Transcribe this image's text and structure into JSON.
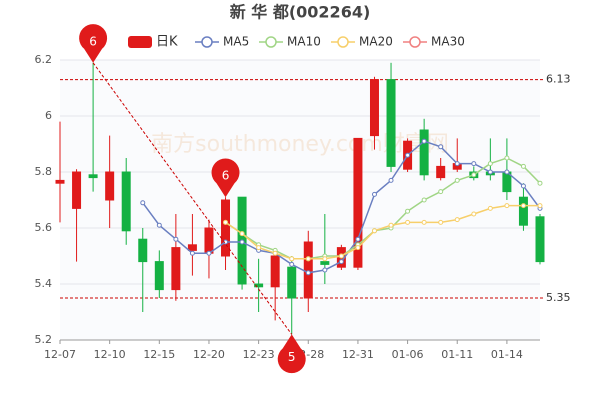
{
  "chart_data": {
    "type": "candlestick",
    "title": "新 华 都(002264)",
    "watermark": "南方southmoney.com财富网",
    "categories": [
      "12-07",
      null,
      null,
      "12-10",
      null,
      null,
      "12-15",
      null,
      null,
      "12-20",
      null,
      null,
      "12-23",
      null,
      null,
      "12-28",
      null,
      null,
      "12-31",
      null,
      null,
      "01-06",
      null,
      null,
      "01-11",
      null,
      null,
      "01-14",
      null,
      null
    ],
    "candles": {
      "name": "日K",
      "up_color": "#e01b1b",
      "down_color": "#14b143",
      "open": [
        5.76,
        5.67,
        5.79,
        5.7,
        5.8,
        5.56,
        5.48,
        5.38,
        5.52,
        5.51,
        5.5,
        5.71,
        5.4,
        5.39,
        5.46,
        5.35,
        5.48,
        5.46,
        5.46,
        5.93,
        6.13,
        5.81,
        5.95,
        5.78,
        5.81,
        5.8,
        5.8,
        5.8,
        5.71,
        5.64
      ],
      "close": [
        5.77,
        5.8,
        5.78,
        5.8,
        5.59,
        5.48,
        5.38,
        5.53,
        5.54,
        5.6,
        5.7,
        5.4,
        5.39,
        5.5,
        5.35,
        5.55,
        5.47,
        5.53,
        5.92,
        6.13,
        5.82,
        5.91,
        5.79,
        5.82,
        5.83,
        5.78,
        5.79,
        5.73,
        5.61,
        5.48
      ],
      "high": [
        5.98,
        5.81,
        6.19,
        5.93,
        5.85,
        5.6,
        5.52,
        5.65,
        5.65,
        5.63,
        5.71,
        5.71,
        5.49,
        5.52,
        5.5,
        5.59,
        5.65,
        5.54,
        5.92,
        6.14,
        6.19,
        5.92,
        5.99,
        5.85,
        5.92,
        5.82,
        5.92,
        5.92,
        5.76,
        5.65
      ],
      "low": [
        5.62,
        5.48,
        5.73,
        5.6,
        5.54,
        5.3,
        5.35,
        5.34,
        5.43,
        5.42,
        5.45,
        5.38,
        5.3,
        5.27,
        5.22,
        5.3,
        5.4,
        5.45,
        5.45,
        5.88,
        5.8,
        5.8,
        5.77,
        5.77,
        5.8,
        5.77,
        5.77,
        5.7,
        5.59,
        5.47
      ]
    },
    "series": [
      {
        "name": "MA5",
        "color": "#6a7fc1",
        "values": [
          null,
          null,
          null,
          null,
          null,
          5.69,
          5.61,
          5.56,
          5.51,
          5.51,
          5.55,
          5.55,
          5.52,
          5.51,
          5.47,
          5.44,
          5.45,
          5.48,
          5.56,
          5.72,
          5.77,
          5.86,
          5.91,
          5.89,
          5.83,
          5.83,
          5.8,
          5.8,
          5.75,
          5.67
        ]
      },
      {
        "name": "MA10",
        "color": "#a0d585",
        "values": [
          null,
          null,
          null,
          null,
          null,
          null,
          null,
          null,
          null,
          null,
          5.62,
          5.58,
          5.54,
          5.52,
          5.49,
          5.49,
          5.5,
          5.5,
          5.54,
          5.59,
          5.6,
          5.66,
          5.7,
          5.73,
          5.77,
          5.79,
          5.83,
          5.85,
          5.82,
          5.76
        ]
      },
      {
        "name": "MA20",
        "color": "#f7cf6a",
        "values": [
          null,
          null,
          null,
          null,
          null,
          null,
          null,
          null,
          null,
          null,
          5.62,
          5.58,
          5.53,
          5.51,
          5.49,
          5.49,
          5.49,
          5.5,
          5.53,
          5.59,
          5.61,
          5.62,
          5.62,
          5.62,
          5.63,
          5.65,
          5.67,
          5.68,
          5.68,
          5.68
        ]
      },
      {
        "name": "MA30",
        "color": "#f08080",
        "values": [
          null,
          null,
          null,
          null,
          null,
          null,
          null,
          null,
          null,
          null,
          null,
          null,
          null,
          null,
          null,
          null,
          null,
          null,
          null,
          null,
          null,
          null,
          null,
          null,
          null,
          null,
          null,
          null,
          null,
          null
        ]
      }
    ],
    "ref_lines": [
      6.13,
      5.35
    ],
    "pins": [
      {
        "label": "6",
        "index": 2,
        "value": 6.19
      },
      {
        "label": "6",
        "index": 10,
        "value": 5.71
      },
      {
        "label": "5",
        "index": 14,
        "value": 5.22
      }
    ],
    "ylim": [
      5.2,
      6.2
    ],
    "yticks": [
      5.2,
      5.4,
      5.6,
      5.8,
      6,
      6.2
    ],
    "grid": true
  }
}
